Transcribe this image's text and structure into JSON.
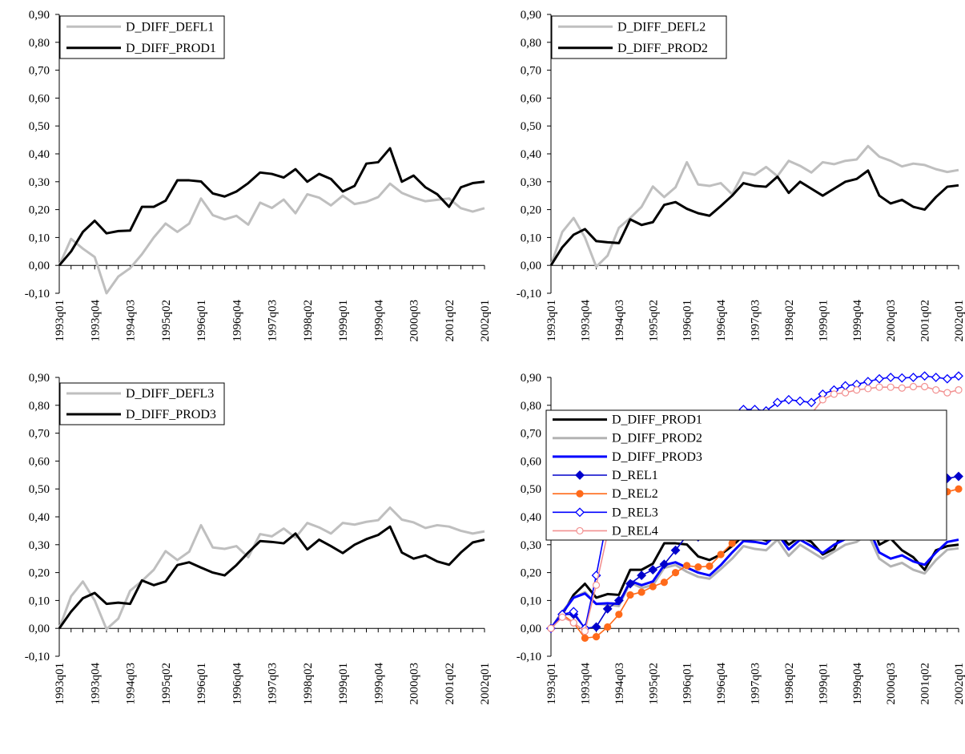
{
  "chart_data": [
    {
      "type": "line",
      "categories_shown": [
        "1993q01",
        "1993q04",
        "1994q03",
        "1995q02",
        "1996q01",
        "1996q04",
        "1997q03",
        "1998q02",
        "1999q01",
        "1999q04",
        "2000q03",
        "2001q02",
        "2002q01"
      ],
      "x": [
        "1993q01",
        "1993q02",
        "1993q03",
        "1993q04",
        "1994q01",
        "1994q02",
        "1994q03",
        "1994q04",
        "1995q01",
        "1995q02",
        "1995q03",
        "1995q04",
        "1996q01",
        "1996q02",
        "1996q03",
        "1996q04",
        "1997q01",
        "1997q02",
        "1997q03",
        "1997q04",
        "1998q01",
        "1998q02",
        "1998q03",
        "1998q04",
        "1999q01",
        "1999q02",
        "1999q03",
        "1999q04",
        "2000q01",
        "2000q02",
        "2000q03",
        "2000q04",
        "2001q01",
        "2001q02",
        "2001q03",
        "2001q04",
        "2002q01"
      ],
      "yticks": [
        "0,90",
        "0,80",
        "0,70",
        "0,60",
        "0,50",
        "0,40",
        "0,30",
        "0,20",
        "0,10",
        "0,00",
        "-0,10"
      ],
      "ylim": [
        -0.1,
        0.9
      ],
      "legend_position": "top-left",
      "series": [
        {
          "name": "D_DIFF_DEFL1",
          "color": "#bfbfbf",
          "values": [
            0.0,
            0.095,
            0.06,
            0.03,
            -0.1,
            -0.04,
            -0.01,
            0.04,
            0.1,
            0.15,
            0.12,
            0.15,
            0.24,
            0.18,
            0.165,
            0.178,
            0.146,
            0.225,
            0.206,
            0.236,
            0.187,
            0.255,
            0.243,
            0.215,
            0.25,
            0.22,
            0.228,
            0.245,
            0.293,
            0.26,
            0.243,
            0.23,
            0.235,
            0.24,
            0.205,
            0.193,
            0.205
          ]
        },
        {
          "name": "D_DIFF_PROD1",
          "color": "#000000",
          "values": [
            0.0,
            0.05,
            0.12,
            0.16,
            0.115,
            0.123,
            0.125,
            0.21,
            0.21,
            0.232,
            0.305,
            0.305,
            0.301,
            0.258,
            0.247,
            0.265,
            0.295,
            0.333,
            0.328,
            0.315,
            0.345,
            0.3,
            0.328,
            0.31,
            0.265,
            0.285,
            0.365,
            0.37,
            0.42,
            0.3,
            0.322,
            0.28,
            0.255,
            0.21,
            0.28,
            0.295,
            0.3
          ]
        }
      ]
    },
    {
      "type": "line",
      "categories_shown": [
        "1993q01",
        "1993q04",
        "1994q03",
        "1995q02",
        "1996q01",
        "1996q04",
        "1997q03",
        "1998q02",
        "1999q01",
        "1999q04",
        "2000q03",
        "2001q02",
        "2002q01"
      ],
      "x": [
        "1993q01",
        "1993q02",
        "1993q03",
        "1993q04",
        "1994q01",
        "1994q02",
        "1994q03",
        "1994q04",
        "1995q01",
        "1995q02",
        "1995q03",
        "1995q04",
        "1996q01",
        "1996q02",
        "1996q03",
        "1996q04",
        "1997q01",
        "1997q02",
        "1997q03",
        "1997q04",
        "1998q01",
        "1998q02",
        "1998q03",
        "1998q04",
        "1999q01",
        "1999q02",
        "1999q03",
        "1999q04",
        "2000q01",
        "2000q02",
        "2000q03",
        "2000q04",
        "2001q01",
        "2001q02",
        "2001q03",
        "2001q04",
        "2002q01"
      ],
      "yticks": [
        "0,90",
        "0,80",
        "0,70",
        "0,60",
        "0,50",
        "0,40",
        "0,30",
        "0,20",
        "0,10",
        "0,00",
        "-0,10"
      ],
      "ylim": [
        -0.1,
        0.9
      ],
      "legend_position": "top-left",
      "series": [
        {
          "name": "D_DIFF_DEFL2",
          "color": "#bfbfbf",
          "values": [
            0.0,
            0.12,
            0.17,
            0.1,
            -0.005,
            0.035,
            0.135,
            0.17,
            0.21,
            0.283,
            0.245,
            0.28,
            0.37,
            0.29,
            0.285,
            0.295,
            0.255,
            0.333,
            0.325,
            0.353,
            0.32,
            0.375,
            0.357,
            0.333,
            0.37,
            0.363,
            0.375,
            0.38,
            0.428,
            0.39,
            0.375,
            0.355,
            0.365,
            0.36,
            0.345,
            0.335,
            0.342
          ]
        },
        {
          "name": "D_DIFF_PROD2",
          "color": "#000000",
          "values": [
            0.0,
            0.065,
            0.11,
            0.13,
            0.087,
            0.083,
            0.08,
            0.165,
            0.145,
            0.155,
            0.217,
            0.227,
            0.203,
            0.187,
            0.178,
            0.213,
            0.25,
            0.295,
            0.285,
            0.282,
            0.318,
            0.26,
            0.3,
            0.275,
            0.25,
            0.275,
            0.3,
            0.31,
            0.34,
            0.25,
            0.222,
            0.235,
            0.21,
            0.2,
            0.245,
            0.282,
            0.287
          ]
        }
      ]
    },
    {
      "type": "line",
      "categories_shown": [
        "1993q01",
        "1993q04",
        "1994q03",
        "1995q02",
        "1996q01",
        "1996q04",
        "1997q03",
        "1998q02",
        "1999q01",
        "1999q04",
        "2000q03",
        "2001q02",
        "2002q01"
      ],
      "x": [
        "1993q01",
        "1993q02",
        "1993q03",
        "1993q04",
        "1994q01",
        "1994q02",
        "1994q03",
        "1994q04",
        "1995q01",
        "1995q02",
        "1995q03",
        "1995q04",
        "1996q01",
        "1996q02",
        "1996q03",
        "1996q04",
        "1997q01",
        "1997q02",
        "1997q03",
        "1997q04",
        "1998q01",
        "1998q02",
        "1998q03",
        "1998q04",
        "1999q01",
        "1999q02",
        "1999q03",
        "1999q04",
        "2000q01",
        "2000q02",
        "2000q03",
        "2000q04",
        "2001q01",
        "2001q02",
        "2001q03",
        "2001q04",
        "2002q01"
      ],
      "yticks": [
        "0,90",
        "0,80",
        "0,70",
        "0,60",
        "0,50",
        "0,40",
        "0,30",
        "0,20",
        "0,10",
        "0,00",
        "-0,10"
      ],
      "ylim": [
        -0.1,
        0.9
      ],
      "legend_position": "top-left",
      "series": [
        {
          "name": "D_DIFF_DEFL3",
          "color": "#bfbfbf",
          "values": [
            0.0,
            0.115,
            0.168,
            0.1,
            -0.003,
            0.035,
            0.135,
            0.17,
            0.21,
            0.277,
            0.245,
            0.275,
            0.37,
            0.29,
            0.285,
            0.295,
            0.255,
            0.338,
            0.33,
            0.358,
            0.325,
            0.378,
            0.362,
            0.34,
            0.378,
            0.372,
            0.382,
            0.388,
            0.433,
            0.39,
            0.38,
            0.36,
            0.37,
            0.365,
            0.35,
            0.34,
            0.348
          ]
        },
        {
          "name": "D_DIFF_PROD3",
          "color": "#000000",
          "values": [
            0.0,
            0.06,
            0.108,
            0.127,
            0.088,
            0.092,
            0.088,
            0.172,
            0.155,
            0.168,
            0.227,
            0.237,
            0.218,
            0.2,
            0.19,
            0.227,
            0.272,
            0.313,
            0.31,
            0.305,
            0.34,
            0.283,
            0.318,
            0.295,
            0.27,
            0.3,
            0.32,
            0.335,
            0.365,
            0.272,
            0.25,
            0.262,
            0.24,
            0.228,
            0.272,
            0.308,
            0.318
          ]
        }
      ]
    },
    {
      "type": "line",
      "categories_shown": [
        "1993q01",
        "1993q04",
        "1994q03",
        "1995q02",
        "1996q01",
        "1996q04",
        "1997q03",
        "1998q02",
        "1999q01",
        "1999q04",
        "2000q03",
        "2001q02",
        "2002q01"
      ],
      "x": [
        "1993q01",
        "1993q02",
        "1993q03",
        "1993q04",
        "1994q01",
        "1994q02",
        "1994q03",
        "1994q04",
        "1995q01",
        "1995q02",
        "1995q03",
        "1995q04",
        "1996q01",
        "1996q02",
        "1996q03",
        "1996q04",
        "1997q01",
        "1997q02",
        "1997q03",
        "1997q04",
        "1998q01",
        "1998q02",
        "1998q03",
        "1998q04",
        "1999q01",
        "1999q02",
        "1999q03",
        "1999q04",
        "2000q01",
        "2000q02",
        "2000q03",
        "2000q04",
        "2001q01",
        "2001q02",
        "2001q03",
        "2001q04",
        "2002q01"
      ],
      "yticks": [
        "0,90",
        "0,80",
        "0,70",
        "0,60",
        "0,50",
        "0,40",
        "0,30",
        "0,20",
        "0,10",
        "0,00",
        "-0,10"
      ],
      "ylim": [
        -0.1,
        0.9
      ],
      "legend_position": "top-left",
      "series": [
        {
          "name": "D_DIFF_PROD1",
          "color": "#000000",
          "marker": "none",
          "values": [
            0.0,
            0.05,
            0.12,
            0.16,
            0.11,
            0.123,
            0.12,
            0.21,
            0.21,
            0.232,
            0.305,
            0.305,
            0.301,
            0.258,
            0.245,
            0.265,
            0.295,
            0.333,
            0.328,
            0.315,
            0.345,
            0.3,
            0.328,
            0.31,
            0.265,
            0.285,
            0.365,
            0.37,
            0.418,
            0.3,
            0.322,
            0.28,
            0.255,
            0.21,
            0.28,
            0.295,
            0.3
          ]
        },
        {
          "name": "D_DIFF_PROD2",
          "color": "#b3b3b3",
          "marker": "none",
          "values": [
            0.0,
            0.06,
            0.11,
            0.13,
            0.087,
            0.085,
            0.08,
            0.165,
            0.145,
            0.155,
            0.217,
            0.227,
            0.203,
            0.185,
            0.178,
            0.213,
            0.25,
            0.295,
            0.285,
            0.28,
            0.318,
            0.26,
            0.3,
            0.275,
            0.25,
            0.275,
            0.3,
            0.31,
            0.34,
            0.25,
            0.222,
            0.235,
            0.21,
            0.197,
            0.245,
            0.282,
            0.287
          ]
        },
        {
          "name": "D_DIFF_PROD3",
          "color": "#0000ff",
          "marker": "none",
          "values": [
            0.0,
            0.055,
            0.11,
            0.125,
            0.088,
            0.09,
            0.088,
            0.17,
            0.155,
            0.168,
            0.227,
            0.237,
            0.218,
            0.2,
            0.19,
            0.227,
            0.272,
            0.313,
            0.31,
            0.303,
            0.34,
            0.283,
            0.318,
            0.295,
            0.27,
            0.3,
            0.32,
            0.335,
            0.365,
            0.272,
            0.25,
            0.262,
            0.24,
            0.228,
            0.272,
            0.31,
            0.318
          ]
        },
        {
          "name": "D_REL1",
          "color": "#0000cc",
          "marker": "filled-diamond",
          "values": [
            0.0,
            0.05,
            0.05,
            0.0,
            0.005,
            0.07,
            0.1,
            0.16,
            0.19,
            0.21,
            0.23,
            0.28,
            0.333,
            0.328,
            0.333,
            0.355,
            0.38,
            0.41,
            0.42,
            0.425,
            0.44,
            0.448,
            0.45,
            0.455,
            0.46,
            0.47,
            0.485,
            0.495,
            0.505,
            0.52,
            0.527,
            0.533,
            0.535,
            0.535,
            0.537,
            0.538,
            0.545
          ]
        },
        {
          "name": "D_REL2",
          "color": "#ff6a1a",
          "marker": "filled-circle",
          "values": [
            0.0,
            0.05,
            0.02,
            -0.035,
            -0.03,
            0.005,
            0.05,
            0.12,
            0.13,
            0.15,
            0.165,
            0.2,
            0.225,
            0.22,
            0.223,
            0.265,
            0.305,
            0.333,
            0.337,
            0.35,
            0.38,
            0.385,
            0.39,
            0.4,
            0.425,
            0.445,
            0.455,
            0.465,
            0.475,
            0.488,
            0.5,
            0.497,
            0.495,
            0.49,
            0.485,
            0.49,
            0.5
          ]
        },
        {
          "name": "D_REL3",
          "color": "#0000ff",
          "marker": "open-diamond",
          "values": [
            0.0,
            0.05,
            0.06,
            0.0,
            0.19,
            0.4,
            0.48,
            0.5,
            0.53,
            0.6,
            0.665,
            0.695,
            0.72,
            0.735,
            0.74,
            0.743,
            0.745,
            0.785,
            0.785,
            0.78,
            0.81,
            0.82,
            0.815,
            0.81,
            0.84,
            0.855,
            0.87,
            0.875,
            0.885,
            0.895,
            0.9,
            0.898,
            0.9,
            0.905,
            0.9,
            0.895,
            0.905
          ]
        },
        {
          "name": "D_REL4",
          "color": "#f29090",
          "marker": "open-circle",
          "values": [
            0.0,
            0.04,
            0.02,
            -0.01,
            0.155,
            0.34,
            0.42,
            0.455,
            0.475,
            0.555,
            0.59,
            0.6,
            0.615,
            0.623,
            0.628,
            0.645,
            0.675,
            0.705,
            0.695,
            0.705,
            0.745,
            0.753,
            0.748,
            0.77,
            0.82,
            0.84,
            0.845,
            0.855,
            0.86,
            0.865,
            0.865,
            0.862,
            0.867,
            0.867,
            0.855,
            0.845,
            0.855
          ]
        }
      ]
    }
  ]
}
